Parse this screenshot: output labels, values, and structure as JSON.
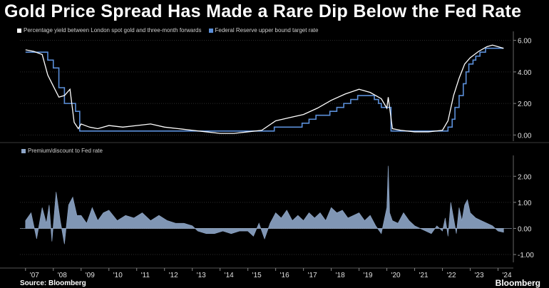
{
  "header": {
    "title": "Gold Price Spread Has Made a Rare Dip Below the Fed Rate"
  },
  "footer": {
    "source": "Source: Bloomberg",
    "brand": "Bloomberg"
  },
  "colors": {
    "background": "#000000",
    "gold_spread": "#ffffff",
    "fed_rate": "#5b8fd9",
    "premium": "#8ea6c8"
  },
  "chart_data": [
    {
      "type": "line",
      "title": "",
      "series": [
        {
          "name": "Percentage yield between London spot gold and three-month forwards",
          "x": [
            2007.0,
            2007.3,
            2007.6,
            2007.8,
            2008.0,
            2008.2,
            2008.4,
            2008.6,
            2008.75,
            2008.9,
            2009.0,
            2009.3,
            2009.6,
            2010.0,
            2010.5,
            2011.0,
            2011.5,
            2012.0,
            2012.5,
            2013.0,
            2013.5,
            2014.0,
            2014.5,
            2015.0,
            2015.5,
            2016.0,
            2016.5,
            2017.0,
            2017.5,
            2018.0,
            2018.5,
            2019.0,
            2019.4,
            2019.8,
            2020.0,
            2020.05,
            2020.2,
            2020.5,
            2021.0,
            2021.5,
            2022.0,
            2022.2,
            2022.4,
            2022.6,
            2022.8,
            2023.0,
            2023.3,
            2023.6,
            2023.8,
            2024.0,
            2024.2
          ],
          "y": [
            5.4,
            5.3,
            5.1,
            3.8,
            3.1,
            2.4,
            2.5,
            2.9,
            0.8,
            0.4,
            0.7,
            0.5,
            0.4,
            0.6,
            0.5,
            0.6,
            0.7,
            0.5,
            0.4,
            0.3,
            0.2,
            0.1,
            0.1,
            0.2,
            0.3,
            0.9,
            1.1,
            1.3,
            1.7,
            2.2,
            2.6,
            2.9,
            2.7,
            2.3,
            1.7,
            2.4,
            0.4,
            0.3,
            0.2,
            0.2,
            0.3,
            0.9,
            2.5,
            3.6,
            4.5,
            4.9,
            5.3,
            5.6,
            5.7,
            5.6,
            5.5
          ]
        },
        {
          "name": "Federal Reserve upper bound target rate",
          "x": [
            2007.0,
            2007.65,
            2007.8,
            2008.0,
            2008.2,
            2008.4,
            2008.8,
            2008.95,
            2015.95,
            2016.95,
            2017.2,
            2017.45,
            2017.95,
            2018.2,
            2018.45,
            2018.7,
            2018.95,
            2019.55,
            2019.7,
            2019.8,
            2020.15,
            2022.2,
            2022.35,
            2022.45,
            2022.6,
            2022.75,
            2022.85,
            2022.95,
            2023.1,
            2023.2,
            2023.35,
            2023.55,
            2024.2
          ],
          "y": [
            5.25,
            5.25,
            4.75,
            4.25,
            3.0,
            2.0,
            1.5,
            0.25,
            0.5,
            0.75,
            1.0,
            1.25,
            1.5,
            1.75,
            2.0,
            2.25,
            2.5,
            2.25,
            2.0,
            1.75,
            0.25,
            0.5,
            1.0,
            1.75,
            2.5,
            3.25,
            4.0,
            4.5,
            4.75,
            5.0,
            5.25,
            5.5,
            5.5
          ]
        }
      ],
      "y_ticks": [
        "6.00",
        "4.00",
        "2.00",
        "0.00"
      ],
      "ylim": [
        -0.3,
        6.3
      ],
      "xlim": [
        2006.8,
        2024.5
      ],
      "grid": true
    },
    {
      "type": "area",
      "title": "",
      "series": [
        {
          "name": "Premium/discount to Fed rate",
          "x": [
            2007.0,
            2007.2,
            2007.4,
            2007.6,
            2007.75,
            2007.85,
            2007.95,
            2008.1,
            2008.25,
            2008.4,
            2008.55,
            2008.7,
            2008.85,
            2009.0,
            2009.2,
            2009.4,
            2009.6,
            2009.8,
            2010.0,
            2010.3,
            2010.6,
            2010.9,
            2011.2,
            2011.5,
            2011.8,
            2012.1,
            2012.4,
            2012.7,
            2013.0,
            2013.2,
            2013.5,
            2013.8,
            2014.1,
            2014.4,
            2014.7,
            2015.0,
            2015.2,
            2015.4,
            2015.6,
            2015.8,
            2016.0,
            2016.2,
            2016.4,
            2016.6,
            2016.8,
            2017.0,
            2017.2,
            2017.4,
            2017.6,
            2017.8,
            2018.0,
            2018.2,
            2018.4,
            2018.6,
            2018.8,
            2019.0,
            2019.2,
            2019.4,
            2019.6,
            2019.8,
            2019.9,
            2020.0,
            2020.05,
            2020.1,
            2020.2,
            2020.4,
            2020.6,
            2020.8,
            2021.0,
            2021.2,
            2021.4,
            2021.6,
            2021.8,
            2022.0,
            2022.1,
            2022.2,
            2022.3,
            2022.4,
            2022.5,
            2022.6,
            2022.7,
            2022.8,
            2022.9,
            2023.0,
            2023.2,
            2023.4,
            2023.6,
            2023.8,
            2024.0,
            2024.2
          ],
          "y": [
            0.3,
            0.6,
            -0.4,
            0.8,
            0.2,
            0.9,
            -0.5,
            1.4,
            0.3,
            -0.6,
            0.9,
            1.2,
            0.5,
            0.5,
            0.2,
            0.8,
            0.3,
            0.6,
            0.7,
            0.3,
            0.5,
            0.4,
            0.6,
            0.3,
            0.5,
            0.3,
            0.2,
            0.2,
            0.1,
            -0.1,
            -0.2,
            -0.2,
            -0.1,
            -0.2,
            -0.1,
            -0.1,
            -0.3,
            0.2,
            -0.4,
            0.2,
            0.6,
            0.4,
            0.7,
            0.3,
            0.5,
            0.3,
            0.6,
            0.4,
            0.6,
            0.3,
            0.8,
            0.6,
            0.7,
            0.4,
            0.5,
            0.6,
            0.3,
            0.5,
            0.1,
            -0.2,
            0.3,
            0.8,
            2.4,
            0.6,
            0.3,
            0.2,
            0.6,
            0.3,
            0.1,
            0.0,
            -0.1,
            -0.2,
            0.1,
            -0.1,
            0.4,
            -0.3,
            1.0,
            0.4,
            -0.2,
            0.8,
            0.3,
            0.9,
            1.1,
            0.6,
            0.4,
            0.3,
            0.2,
            0.1,
            -0.1,
            -0.15
          ]
        }
      ],
      "y_ticks": [
        "2.00",
        "1.00",
        "0.00",
        "-1.00"
      ],
      "ylim": [
        -1.3,
        2.8
      ],
      "xlim": [
        2006.8,
        2024.5
      ],
      "grid": true
    }
  ],
  "x_ticks": [
    "'07",
    "'08",
    "'09",
    "'10",
    "'11",
    "'12",
    "'13",
    "'14",
    "'15",
    "'16",
    "'17",
    "'18",
    "'19",
    "'20",
    "'21",
    "'22",
    "'23",
    "'24"
  ]
}
